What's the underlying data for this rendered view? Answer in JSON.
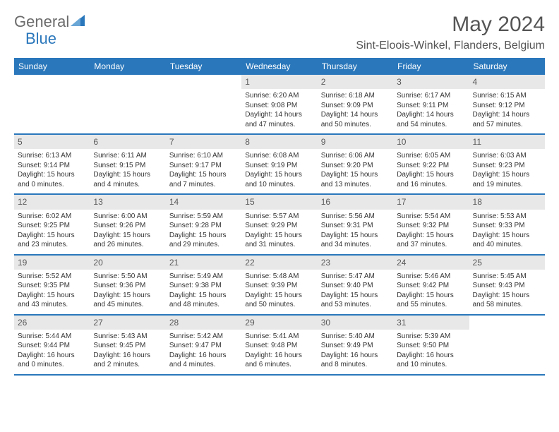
{
  "logo": {
    "word1": "General",
    "word2": "Blue",
    "text_color": "#6b6b6b",
    "accent_color": "#2a77bb"
  },
  "title": "May 2024",
  "location": "Sint-Eloois-Winkel, Flanders, Belgium",
  "colors": {
    "header_bg": "#2a77bb",
    "header_text": "#ffffff",
    "daynum_bg": "#e8e8e8",
    "daynum_text": "#5a5a5a",
    "cell_text": "#333333",
    "border": "#2a77bb"
  },
  "typography": {
    "title_fontsize": 30,
    "location_fontsize": 16,
    "dow_fontsize": 12,
    "daynum_fontsize": 12,
    "cell_fontsize": 10
  },
  "days_of_week": [
    "Sunday",
    "Monday",
    "Tuesday",
    "Wednesday",
    "Thursday",
    "Friday",
    "Saturday"
  ],
  "weeks": [
    [
      null,
      null,
      null,
      {
        "n": "1",
        "sunrise": "6:20 AM",
        "sunset": "9:08 PM",
        "dl": "14 hours and 47 minutes."
      },
      {
        "n": "2",
        "sunrise": "6:18 AM",
        "sunset": "9:09 PM",
        "dl": "14 hours and 50 minutes."
      },
      {
        "n": "3",
        "sunrise": "6:17 AM",
        "sunset": "9:11 PM",
        "dl": "14 hours and 54 minutes."
      },
      {
        "n": "4",
        "sunrise": "6:15 AM",
        "sunset": "9:12 PM",
        "dl": "14 hours and 57 minutes."
      }
    ],
    [
      {
        "n": "5",
        "sunrise": "6:13 AM",
        "sunset": "9:14 PM",
        "dl": "15 hours and 0 minutes."
      },
      {
        "n": "6",
        "sunrise": "6:11 AM",
        "sunset": "9:15 PM",
        "dl": "15 hours and 4 minutes."
      },
      {
        "n": "7",
        "sunrise": "6:10 AM",
        "sunset": "9:17 PM",
        "dl": "15 hours and 7 minutes."
      },
      {
        "n": "8",
        "sunrise": "6:08 AM",
        "sunset": "9:19 PM",
        "dl": "15 hours and 10 minutes."
      },
      {
        "n": "9",
        "sunrise": "6:06 AM",
        "sunset": "9:20 PM",
        "dl": "15 hours and 13 minutes."
      },
      {
        "n": "10",
        "sunrise": "6:05 AM",
        "sunset": "9:22 PM",
        "dl": "15 hours and 16 minutes."
      },
      {
        "n": "11",
        "sunrise": "6:03 AM",
        "sunset": "9:23 PM",
        "dl": "15 hours and 19 minutes."
      }
    ],
    [
      {
        "n": "12",
        "sunrise": "6:02 AM",
        "sunset": "9:25 PM",
        "dl": "15 hours and 23 minutes."
      },
      {
        "n": "13",
        "sunrise": "6:00 AM",
        "sunset": "9:26 PM",
        "dl": "15 hours and 26 minutes."
      },
      {
        "n": "14",
        "sunrise": "5:59 AM",
        "sunset": "9:28 PM",
        "dl": "15 hours and 29 minutes."
      },
      {
        "n": "15",
        "sunrise": "5:57 AM",
        "sunset": "9:29 PM",
        "dl": "15 hours and 31 minutes."
      },
      {
        "n": "16",
        "sunrise": "5:56 AM",
        "sunset": "9:31 PM",
        "dl": "15 hours and 34 minutes."
      },
      {
        "n": "17",
        "sunrise": "5:54 AM",
        "sunset": "9:32 PM",
        "dl": "15 hours and 37 minutes."
      },
      {
        "n": "18",
        "sunrise": "5:53 AM",
        "sunset": "9:33 PM",
        "dl": "15 hours and 40 minutes."
      }
    ],
    [
      {
        "n": "19",
        "sunrise": "5:52 AM",
        "sunset": "9:35 PM",
        "dl": "15 hours and 43 minutes."
      },
      {
        "n": "20",
        "sunrise": "5:50 AM",
        "sunset": "9:36 PM",
        "dl": "15 hours and 45 minutes."
      },
      {
        "n": "21",
        "sunrise": "5:49 AM",
        "sunset": "9:38 PM",
        "dl": "15 hours and 48 minutes."
      },
      {
        "n": "22",
        "sunrise": "5:48 AM",
        "sunset": "9:39 PM",
        "dl": "15 hours and 50 minutes."
      },
      {
        "n": "23",
        "sunrise": "5:47 AM",
        "sunset": "9:40 PM",
        "dl": "15 hours and 53 minutes."
      },
      {
        "n": "24",
        "sunrise": "5:46 AM",
        "sunset": "9:42 PM",
        "dl": "15 hours and 55 minutes."
      },
      {
        "n": "25",
        "sunrise": "5:45 AM",
        "sunset": "9:43 PM",
        "dl": "15 hours and 58 minutes."
      }
    ],
    [
      {
        "n": "26",
        "sunrise": "5:44 AM",
        "sunset": "9:44 PM",
        "dl": "16 hours and 0 minutes."
      },
      {
        "n": "27",
        "sunrise": "5:43 AM",
        "sunset": "9:45 PM",
        "dl": "16 hours and 2 minutes."
      },
      {
        "n": "28",
        "sunrise": "5:42 AM",
        "sunset": "9:47 PM",
        "dl": "16 hours and 4 minutes."
      },
      {
        "n": "29",
        "sunrise": "5:41 AM",
        "sunset": "9:48 PM",
        "dl": "16 hours and 6 minutes."
      },
      {
        "n": "30",
        "sunrise": "5:40 AM",
        "sunset": "9:49 PM",
        "dl": "16 hours and 8 minutes."
      },
      {
        "n": "31",
        "sunrise": "5:39 AM",
        "sunset": "9:50 PM",
        "dl": "16 hours and 10 minutes."
      },
      null
    ]
  ]
}
